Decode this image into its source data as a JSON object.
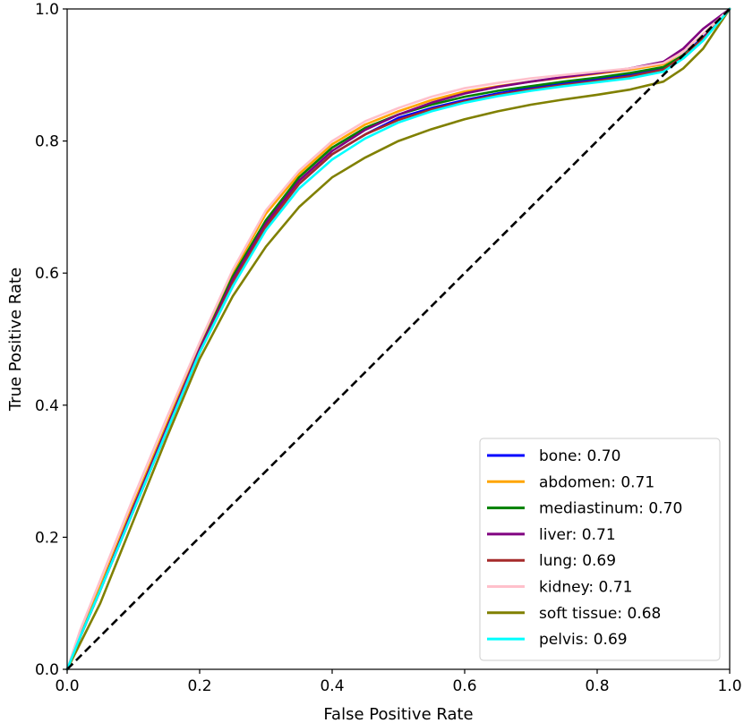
{
  "chart_data": {
    "type": "line",
    "title": "",
    "xlabel": "False Positive Rate",
    "ylabel": "True Positive Rate",
    "xlim": [
      0.0,
      1.0
    ],
    "ylim": [
      0.0,
      1.0
    ],
    "xticks": [
      "0.0",
      "0.2",
      "0.4",
      "0.6",
      "0.8",
      "1.0"
    ],
    "yticks": [
      "0.0",
      "0.2",
      "0.4",
      "0.6",
      "0.8",
      "1.0"
    ],
    "grid": false,
    "legend_position": "lower-right",
    "diagonal_reference": {
      "style": "dashed",
      "color": "#000000",
      "x": [
        0.0,
        1.0
      ],
      "y": [
        0.0,
        1.0
      ]
    },
    "series": [
      {
        "name": "bone: 0.70",
        "color": "#0000ff",
        "x": [
          0.0,
          0.02,
          0.05,
          0.1,
          0.15,
          0.2,
          0.25,
          0.3,
          0.35,
          0.4,
          0.45,
          0.5,
          0.55,
          0.6,
          0.65,
          0.7,
          0.75,
          0.8,
          0.85,
          0.9,
          0.93,
          0.96,
          1.0
        ],
        "y": [
          0.0,
          0.05,
          0.12,
          0.24,
          0.36,
          0.48,
          0.58,
          0.67,
          0.735,
          0.78,
          0.81,
          0.835,
          0.85,
          0.862,
          0.872,
          0.88,
          0.887,
          0.893,
          0.9,
          0.91,
          0.93,
          0.96,
          1.0
        ]
      },
      {
        "name": "abdomen: 0.71",
        "color": "#ffa500",
        "x": [
          0.0,
          0.02,
          0.05,
          0.1,
          0.15,
          0.2,
          0.25,
          0.3,
          0.35,
          0.4,
          0.45,
          0.5,
          0.55,
          0.6,
          0.65,
          0.7,
          0.75,
          0.8,
          0.85,
          0.9,
          0.93,
          0.96,
          1.0
        ],
        "y": [
          0.0,
          0.055,
          0.125,
          0.25,
          0.37,
          0.49,
          0.6,
          0.69,
          0.75,
          0.795,
          0.825,
          0.845,
          0.862,
          0.875,
          0.883,
          0.89,
          0.896,
          0.902,
          0.908,
          0.916,
          0.935,
          0.962,
          1.0
        ]
      },
      {
        "name": "mediastinum: 0.70",
        "color": "#008000",
        "x": [
          0.0,
          0.02,
          0.05,
          0.1,
          0.15,
          0.2,
          0.25,
          0.3,
          0.35,
          0.4,
          0.45,
          0.5,
          0.55,
          0.6,
          0.65,
          0.7,
          0.75,
          0.8,
          0.85,
          0.9,
          0.93,
          0.96,
          1.0
        ],
        "y": [
          0.0,
          0.05,
          0.12,
          0.245,
          0.365,
          0.485,
          0.595,
          0.68,
          0.745,
          0.79,
          0.82,
          0.84,
          0.855,
          0.867,
          0.876,
          0.883,
          0.89,
          0.896,
          0.903,
          0.912,
          0.93,
          0.955,
          1.0
        ]
      },
      {
        "name": "liver: 0.71",
        "color": "#800080",
        "x": [
          0.0,
          0.02,
          0.05,
          0.1,
          0.15,
          0.2,
          0.25,
          0.3,
          0.35,
          0.4,
          0.45,
          0.5,
          0.55,
          0.6,
          0.65,
          0.7,
          0.75,
          0.8,
          0.85,
          0.9,
          0.93,
          0.96,
          1.0
        ],
        "y": [
          0.0,
          0.05,
          0.12,
          0.245,
          0.365,
          0.485,
          0.59,
          0.675,
          0.74,
          0.785,
          0.817,
          0.84,
          0.858,
          0.872,
          0.882,
          0.89,
          0.897,
          0.903,
          0.91,
          0.92,
          0.94,
          0.97,
          1.0
        ]
      },
      {
        "name": "lung: 0.69",
        "color": "#a52a2a",
        "x": [
          0.0,
          0.02,
          0.05,
          0.1,
          0.15,
          0.2,
          0.25,
          0.3,
          0.35,
          0.4,
          0.45,
          0.5,
          0.55,
          0.6,
          0.65,
          0.7,
          0.75,
          0.8,
          0.85,
          0.9,
          0.93,
          0.96,
          1.0
        ],
        "y": [
          0.0,
          0.05,
          0.12,
          0.24,
          0.36,
          0.48,
          0.585,
          0.67,
          0.735,
          0.78,
          0.81,
          0.832,
          0.848,
          0.86,
          0.87,
          0.878,
          0.885,
          0.891,
          0.898,
          0.908,
          0.928,
          0.955,
          1.0
        ]
      },
      {
        "name": "kidney: 0.71",
        "color": "#ffc0cb",
        "x": [
          0.0,
          0.02,
          0.05,
          0.1,
          0.15,
          0.2,
          0.25,
          0.3,
          0.35,
          0.4,
          0.45,
          0.5,
          0.55,
          0.6,
          0.65,
          0.7,
          0.75,
          0.8,
          0.85,
          0.9,
          0.93,
          0.96,
          1.0
        ],
        "y": [
          0.0,
          0.06,
          0.135,
          0.26,
          0.38,
          0.495,
          0.605,
          0.695,
          0.755,
          0.8,
          0.83,
          0.85,
          0.867,
          0.88,
          0.888,
          0.895,
          0.9,
          0.905,
          0.91,
          0.918,
          0.935,
          0.962,
          1.0
        ]
      },
      {
        "name": "soft tissue: 0.68",
        "color": "#808000",
        "x": [
          0.0,
          0.02,
          0.05,
          0.1,
          0.15,
          0.2,
          0.25,
          0.3,
          0.35,
          0.4,
          0.45,
          0.5,
          0.55,
          0.6,
          0.65,
          0.7,
          0.75,
          0.8,
          0.85,
          0.9,
          0.93,
          0.96,
          1.0
        ],
        "y": [
          0.0,
          0.04,
          0.1,
          0.225,
          0.35,
          0.47,
          0.565,
          0.64,
          0.7,
          0.745,
          0.775,
          0.8,
          0.818,
          0.833,
          0.845,
          0.855,
          0.863,
          0.87,
          0.878,
          0.89,
          0.91,
          0.94,
          1.0
        ]
      },
      {
        "name": "pelvis: 0.69",
        "color": "#00ffff",
        "x": [
          0.0,
          0.02,
          0.05,
          0.1,
          0.15,
          0.2,
          0.25,
          0.3,
          0.35,
          0.4,
          0.45,
          0.5,
          0.55,
          0.6,
          0.65,
          0.7,
          0.75,
          0.8,
          0.85,
          0.9,
          0.93,
          0.96,
          1.0
        ],
        "y": [
          0.0,
          0.05,
          0.12,
          0.24,
          0.36,
          0.48,
          0.58,
          0.665,
          0.728,
          0.772,
          0.804,
          0.828,
          0.845,
          0.858,
          0.868,
          0.876,
          0.883,
          0.889,
          0.895,
          0.905,
          0.925,
          0.952,
          1.0
        ]
      }
    ]
  }
}
